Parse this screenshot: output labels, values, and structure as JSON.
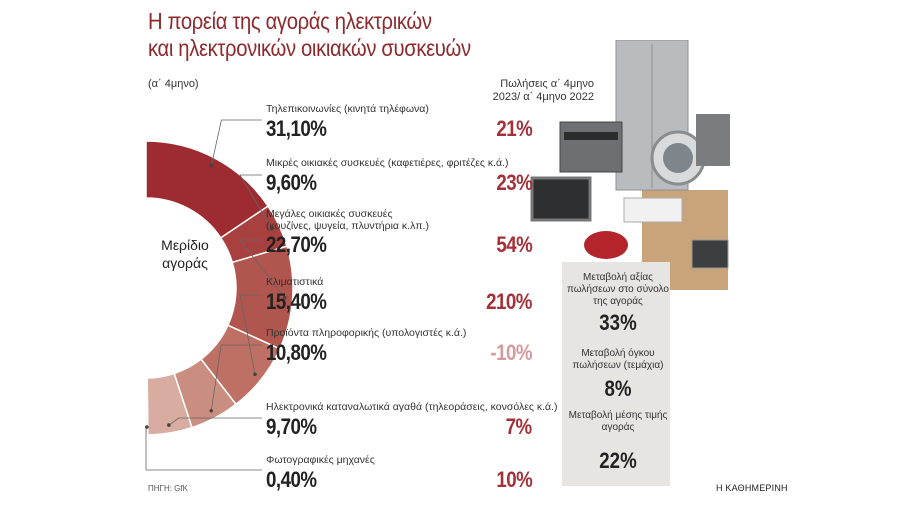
{
  "title_line1": "Η πορεία της αγοράς ηλεκτρικών",
  "title_line2": "και ηλεκτρονικών οικιακών συσκευών",
  "subtitle": "(α΄ 4μηνο)",
  "change_header": "Πωλήσεις α΄ 4μηνο 2023/ α΄ 4μηνο 2022",
  "donut_label": "Μερίδιο αγοράς",
  "chart_data": {
    "type": "pie",
    "categories": [
      "Τηλεπικοινωνίες (κινητά τηλέφωνα)",
      "Μικρές οικιακές συσκευές (καφετιέρες, φριτέζες κ.ά.)",
      "Μεγάλες οικιακές συσκευές (κουζίνες, ψυγεία, πλυντήρια κ.λπ.)",
      "Κλιματιστικά",
      "Προϊόντα πληροφορικής (υπολογιστές κ.ά.)",
      "Ηλεκτρονικά καταναλωτικά αγαθά (τηλεοράσεις, κονσόλες κ.ά.)",
      "Φωτογραφικές μηχανές"
    ],
    "series": [
      {
        "name": "Μερίδιο αγοράς",
        "values": [
          31.1,
          9.6,
          22.7,
          15.4,
          10.8,
          9.7,
          0.4
        ]
      },
      {
        "name": "Πωλήσεις α΄ 4μηνο 2023/ α΄ 4μηνο 2022",
        "values": [
          21,
          23,
          54,
          210,
          -10,
          7,
          10
        ]
      }
    ],
    "colors": [
      "#9e2b30",
      "#a8403f",
      "#b0564e",
      "#bd7063",
      "#ca8e80",
      "#d8aca0",
      "#e6cbc4"
    ]
  },
  "rows": [
    {
      "label": "Τηλεπικοινωνίες (κινητά τηλέφωνα)",
      "value": "31,10%",
      "change": "21%"
    },
    {
      "label": "Μικρές οικιακές συσκευές (καφετιέρες, φριτέζες κ.ά.)",
      "value": "9,60%",
      "change": "23%"
    },
    {
      "label": "Μεγάλες οικιακές συσκευές",
      "label2": "(κουζίνες, ψυγεία, πλυντήρια κ.λπ.)",
      "value": "22,70%",
      "change": "54%"
    },
    {
      "label": "Κλιματιστικά",
      "value": "15,40%",
      "change": "210%"
    },
    {
      "label": "Προϊόντα πληροφορικής (υπολογιστές κ.ά.)",
      "value": "10,80%",
      "change": "-10%"
    },
    {
      "label": "Ηλεκτρονικά καταναλωτικά αγαθά (τηλεοράσεις, κονσόλες κ.ά.)",
      "value": "9,70%",
      "change": "7%"
    },
    {
      "label": "Φωτογραφικές μηχανές",
      "value": "0,40%",
      "change": "10%"
    }
  ],
  "stats": [
    {
      "label": "Μεταβολή αξίας πωλήσεων στο σύνολο της αγοράς",
      "value": "33%"
    },
    {
      "label": "Μεταβολή όγκου πωλήσεων (τεμάχια)",
      "value": "8%"
    },
    {
      "label": "Μεταβολή μέσης τιμής αγοράς",
      "value": "22%"
    }
  ],
  "source": "ΠΗΓΗ: GfK",
  "brand": "Η ΚΑΘΗΜΕΡΙΝΗ"
}
